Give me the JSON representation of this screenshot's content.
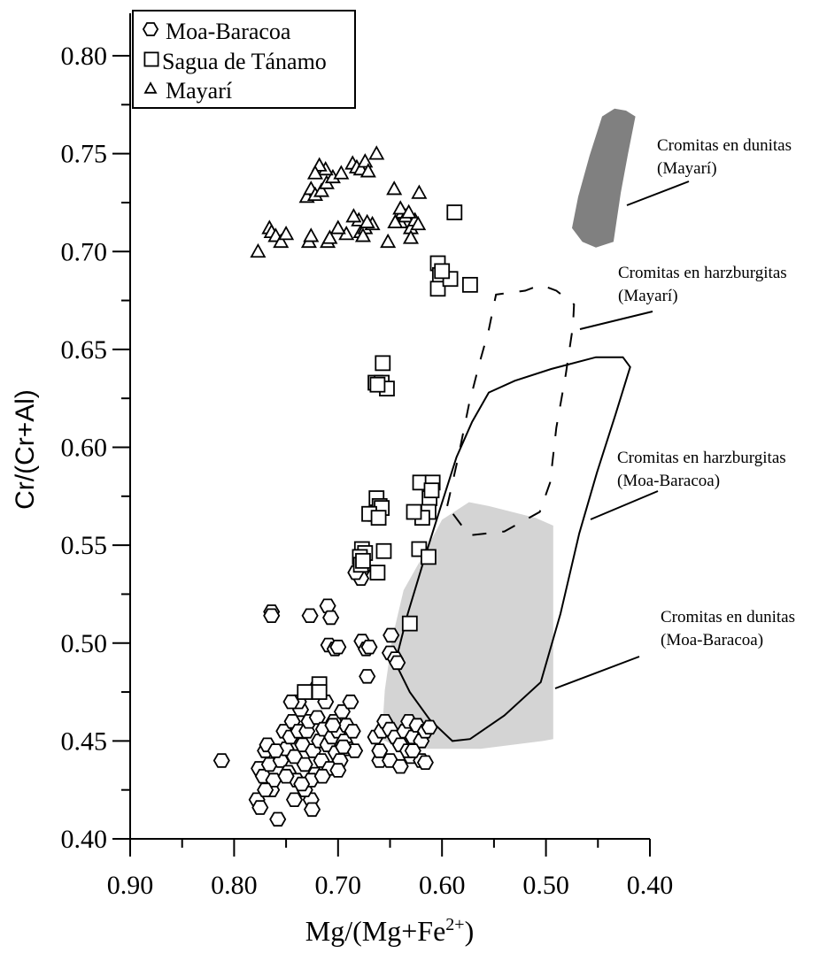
{
  "chart_data": {
    "type": "scatter",
    "title": "",
    "xlabel": "Mg/(Mg+Fe2+)",
    "ylabel": "Cr/(Cr+Al)",
    "xlim": [
      0.9,
      0.4
    ],
    "ylim": [
      0.4,
      0.8
    ],
    "x_reversed": true,
    "grid": false,
    "legend_position": "top-left",
    "x_ticks": [
      "0.90",
      "0.80",
      "0.70",
      "0.60",
      "0.50",
      "0.40"
    ],
    "y_ticks": [
      "0.40",
      "0.45",
      "0.50",
      "0.55",
      "0.60",
      "0.65",
      "0.70",
      "0.75",
      "0.80"
    ],
    "series": [
      {
        "name": "Moa-Baracoa",
        "marker": "hexagon",
        "points": [
          [
            0.812,
            0.44
          ],
          [
            0.778,
            0.42
          ],
          [
            0.775,
            0.416
          ],
          [
            0.776,
            0.436
          ],
          [
            0.772,
            0.432
          ],
          [
            0.77,
            0.445
          ],
          [
            0.768,
            0.448
          ],
          [
            0.766,
            0.438
          ],
          [
            0.764,
            0.425
          ],
          [
            0.762,
            0.43
          ],
          [
            0.758,
            0.41
          ],
          [
            0.755,
            0.44
          ],
          [
            0.752,
            0.455
          ],
          [
            0.75,
            0.446
          ],
          [
            0.748,
            0.434
          ],
          [
            0.746,
            0.452
          ],
          [
            0.744,
            0.46
          ],
          [
            0.742,
            0.442
          ],
          [
            0.74,
            0.43
          ],
          [
            0.738,
            0.455
          ],
          [
            0.736,
            0.466
          ],
          [
            0.734,
            0.448
          ],
          [
            0.732,
            0.438
          ],
          [
            0.73,
            0.455
          ],
          [
            0.728,
            0.46
          ],
          [
            0.726,
            0.42
          ],
          [
            0.725,
            0.415
          ],
          [
            0.724,
            0.445
          ],
          [
            0.722,
            0.433
          ],
          [
            0.72,
            0.462
          ],
          [
            0.718,
            0.45
          ],
          [
            0.716,
            0.44
          ],
          [
            0.714,
            0.456
          ],
          [
            0.712,
            0.47
          ],
          [
            0.71,
            0.448
          ],
          [
            0.708,
            0.436
          ],
          [
            0.706,
            0.452
          ],
          [
            0.704,
            0.46
          ],
          [
            0.702,
            0.444
          ],
          [
            0.7,
            0.455
          ],
          [
            0.698,
            0.44
          ],
          [
            0.696,
            0.465
          ],
          [
            0.694,
            0.45
          ],
          [
            0.692,
            0.458
          ],
          [
            0.69,
            0.446
          ],
          [
            0.688,
            0.47
          ],
          [
            0.686,
            0.455
          ],
          [
            0.684,
            0.445
          ],
          [
            0.738,
            0.47
          ],
          [
            0.73,
            0.475
          ],
          [
            0.72,
            0.478
          ],
          [
            0.745,
            0.47
          ],
          [
            0.732,
            0.425
          ],
          [
            0.726,
            0.43
          ],
          [
            0.764,
            0.516
          ],
          [
            0.764,
            0.514
          ],
          [
            0.727,
            0.514
          ],
          [
            0.71,
            0.519
          ],
          [
            0.707,
            0.513
          ],
          [
            0.709,
            0.499
          ],
          [
            0.703,
            0.497
          ],
          [
            0.7,
            0.498
          ],
          [
            0.677,
            0.501
          ],
          [
            0.673,
            0.497
          ],
          [
            0.67,
            0.498
          ],
          [
            0.672,
            0.483
          ],
          [
            0.649,
            0.504
          ],
          [
            0.65,
            0.495
          ],
          [
            0.645,
            0.492
          ],
          [
            0.643,
            0.49
          ],
          [
            0.676,
            0.538
          ],
          [
            0.678,
            0.533
          ],
          [
            0.683,
            0.536
          ],
          [
            0.664,
            0.452
          ],
          [
            0.658,
            0.455
          ],
          [
            0.655,
            0.46
          ],
          [
            0.65,
            0.456
          ],
          [
            0.645,
            0.452
          ],
          [
            0.64,
            0.448
          ],
          [
            0.636,
            0.455
          ],
          [
            0.632,
            0.46
          ],
          [
            0.628,
            0.452
          ],
          [
            0.624,
            0.458
          ],
          [
            0.62,
            0.45
          ],
          [
            0.616,
            0.455
          ],
          [
            0.612,
            0.457
          ],
          [
            0.66,
            0.44
          ],
          [
            0.65,
            0.44
          ],
          [
            0.64,
            0.437
          ],
          [
            0.63,
            0.442
          ],
          [
            0.62,
            0.44
          ],
          [
            0.616,
            0.439
          ],
          [
            0.633,
            0.445
          ],
          [
            0.66,
            0.445
          ],
          [
            0.628,
            0.445
          ],
          [
            0.76,
            0.445
          ],
          [
            0.77,
            0.425
          ],
          [
            0.75,
            0.432
          ],
          [
            0.742,
            0.42
          ],
          [
            0.735,
            0.428
          ],
          [
            0.705,
            0.458
          ],
          [
            0.695,
            0.447
          ],
          [
            0.715,
            0.432
          ],
          [
            0.7,
            0.435
          ]
        ]
      },
      {
        "name": "Sagua de Tánamo",
        "marker": "square",
        "points": [
          [
            0.588,
            0.72
          ],
          [
            0.604,
            0.694
          ],
          [
            0.602,
            0.688
          ],
          [
            0.604,
            0.681
          ],
          [
            0.592,
            0.686
          ],
          [
            0.6,
            0.69
          ],
          [
            0.573,
            0.683
          ],
          [
            0.657,
            0.643
          ],
          [
            0.664,
            0.633
          ],
          [
            0.658,
            0.633
          ],
          [
            0.653,
            0.63
          ],
          [
            0.662,
            0.632
          ],
          [
            0.663,
            0.574
          ],
          [
            0.66,
            0.57
          ],
          [
            0.664,
            0.566
          ],
          [
            0.658,
            0.569
          ],
          [
            0.67,
            0.566
          ],
          [
            0.661,
            0.564
          ],
          [
            0.621,
            0.582
          ],
          [
            0.609,
            0.582
          ],
          [
            0.612,
            0.574
          ],
          [
            0.613,
            0.567
          ],
          [
            0.619,
            0.564
          ],
          [
            0.627,
            0.567
          ],
          [
            0.622,
            0.548
          ],
          [
            0.613,
            0.544
          ],
          [
            0.656,
            0.547
          ],
          [
            0.662,
            0.536
          ],
          [
            0.677,
            0.548
          ],
          [
            0.674,
            0.546
          ],
          [
            0.679,
            0.544
          ],
          [
            0.678,
            0.54
          ],
          [
            0.676,
            0.542
          ],
          [
            0.631,
            0.51
          ],
          [
            0.718,
            0.479
          ],
          [
            0.718,
            0.475
          ],
          [
            0.732,
            0.475
          ],
          [
            0.61,
            0.578
          ]
        ]
      },
      {
        "name": "Mayarí",
        "marker": "triangle",
        "points": [
          [
            0.777,
            0.7
          ],
          [
            0.766,
            0.712
          ],
          [
            0.764,
            0.71
          ],
          [
            0.76,
            0.708
          ],
          [
            0.755,
            0.705
          ],
          [
            0.75,
            0.709
          ],
          [
            0.728,
            0.705
          ],
          [
            0.726,
            0.708
          ],
          [
            0.71,
            0.705
          ],
          [
            0.708,
            0.707
          ],
          [
            0.692,
            0.709
          ],
          [
            0.678,
            0.71
          ],
          [
            0.674,
            0.712
          ],
          [
            0.667,
            0.714
          ],
          [
            0.68,
            0.716
          ],
          [
            0.685,
            0.718
          ],
          [
            0.672,
            0.715
          ],
          [
            0.652,
            0.705
          ],
          [
            0.64,
            0.715
          ],
          [
            0.638,
            0.72
          ],
          [
            0.635,
            0.718
          ],
          [
            0.63,
            0.712
          ],
          [
            0.626,
            0.716
          ],
          [
            0.623,
            0.714
          ],
          [
            0.63,
            0.707
          ],
          [
            0.622,
            0.73
          ],
          [
            0.73,
            0.728
          ],
          [
            0.726,
            0.732
          ],
          [
            0.722,
            0.729
          ],
          [
            0.716,
            0.731
          ],
          [
            0.711,
            0.735
          ],
          [
            0.705,
            0.738
          ],
          [
            0.697,
            0.74
          ],
          [
            0.712,
            0.742
          ],
          [
            0.718,
            0.744
          ],
          [
            0.722,
            0.74
          ],
          [
            0.686,
            0.745
          ],
          [
            0.682,
            0.743
          ],
          [
            0.678,
            0.742
          ],
          [
            0.674,
            0.746
          ],
          [
            0.671,
            0.741
          ],
          [
            0.663,
            0.75
          ],
          [
            0.646,
            0.732
          ],
          [
            0.64,
            0.722
          ],
          [
            0.645,
            0.715
          ],
          [
            0.632,
            0.72
          ],
          [
            0.676,
            0.708
          ],
          [
            0.7,
            0.712
          ]
        ]
      }
    ],
    "regions": [
      {
        "label": [
          "Cromitas en dunitas",
          "(Mayarí)"
        ],
        "style": "filled-dark",
        "color": "#808080",
        "polygon": [
          [
            0.434,
            0.773
          ],
          [
            0.423,
            0.772
          ],
          [
            0.414,
            0.769
          ],
          [
            0.421,
            0.75
          ],
          [
            0.428,
            0.73
          ],
          [
            0.435,
            0.705
          ],
          [
            0.452,
            0.702
          ],
          [
            0.465,
            0.705
          ],
          [
            0.475,
            0.712
          ],
          [
            0.469,
            0.728
          ],
          [
            0.458,
            0.749
          ],
          [
            0.446,
            0.769
          ]
        ]
      },
      {
        "label": [
          "Cromitas en harzburgitas",
          "(Mayarí)"
        ],
        "style": "dashed",
        "polyline": [
          [
            0.595,
            0.57
          ],
          [
            0.584,
            0.596
          ],
          [
            0.574,
            0.622
          ],
          [
            0.564,
            0.643
          ],
          [
            0.555,
            0.66
          ],
          [
            0.548,
            0.678
          ],
          [
            0.52,
            0.68
          ],
          [
            0.505,
            0.683
          ],
          [
            0.49,
            0.68
          ],
          [
            0.473,
            0.673
          ],
          [
            0.474,
            0.662
          ],
          [
            0.481,
            0.637
          ],
          [
            0.49,
            0.61
          ],
          [
            0.496,
            0.582
          ],
          [
            0.506,
            0.567
          ],
          [
            0.54,
            0.557
          ],
          [
            0.574,
            0.555
          ],
          [
            0.595,
            0.57
          ]
        ]
      },
      {
        "label": [
          "Cromitas en harzburgitas",
          "(Moa-Baracoa)"
        ],
        "style": "outline",
        "polygon": [
          [
            0.645,
            0.49
          ],
          [
            0.633,
            0.515
          ],
          [
            0.617,
            0.543
          ],
          [
            0.601,
            0.57
          ],
          [
            0.586,
            0.595
          ],
          [
            0.571,
            0.613
          ],
          [
            0.555,
            0.628
          ],
          [
            0.53,
            0.634
          ],
          [
            0.495,
            0.64
          ],
          [
            0.452,
            0.646
          ],
          [
            0.426,
            0.646
          ],
          [
            0.419,
            0.641
          ],
          [
            0.433,
            0.617
          ],
          [
            0.451,
            0.587
          ],
          [
            0.468,
            0.556
          ],
          [
            0.486,
            0.515
          ],
          [
            0.505,
            0.48
          ],
          [
            0.54,
            0.463
          ],
          [
            0.573,
            0.451
          ],
          [
            0.59,
            0.45
          ],
          [
            0.612,
            0.461
          ],
          [
            0.631,
            0.475
          ]
        ]
      },
      {
        "label": [
          "Cromitas en dunitas",
          "(Moa-Baracoa)"
        ],
        "style": "filled-light",
        "color": "#d4d4d4",
        "polygon": [
          [
            0.658,
            0.451
          ],
          [
            0.655,
            0.476
          ],
          [
            0.648,
            0.502
          ],
          [
            0.637,
            0.527
          ],
          [
            0.62,
            0.543
          ],
          [
            0.6,
            0.563
          ],
          [
            0.574,
            0.572
          ],
          [
            0.555,
            0.57
          ],
          [
            0.51,
            0.564
          ],
          [
            0.493,
            0.56
          ],
          [
            0.493,
            0.451
          ],
          [
            0.503,
            0.45
          ],
          [
            0.563,
            0.446
          ],
          [
            0.608,
            0.446
          ],
          [
            0.64,
            0.446
          ]
        ]
      }
    ]
  },
  "legend": {
    "items": [
      {
        "label": "Moa-Baracoa",
        "marker": "hexagon"
      },
      {
        "label": "Sagua de Tánamo",
        "marker": "square"
      },
      {
        "label": "Mayarí",
        "marker": "triangle"
      }
    ]
  },
  "axes": {
    "xlabel_main": "Mg/(Mg+Fe",
    "xlabel_sup": "2+",
    "xlabel_end": ")",
    "ylabel": "Cr/(Cr+Al)"
  },
  "annotations": [
    {
      "lines": [
        "Cromitas en dunitas",
        "(Mayarí)"
      ]
    },
    {
      "lines": [
        "Cromitas en harzburgitas",
        "(Mayarí)"
      ]
    },
    {
      "lines": [
        "Cromitas en harzburgitas",
        "(Moa-Baracoa)"
      ]
    },
    {
      "lines": [
        "Cromitas en dunitas",
        "(Moa-Baracoa)"
      ]
    }
  ]
}
